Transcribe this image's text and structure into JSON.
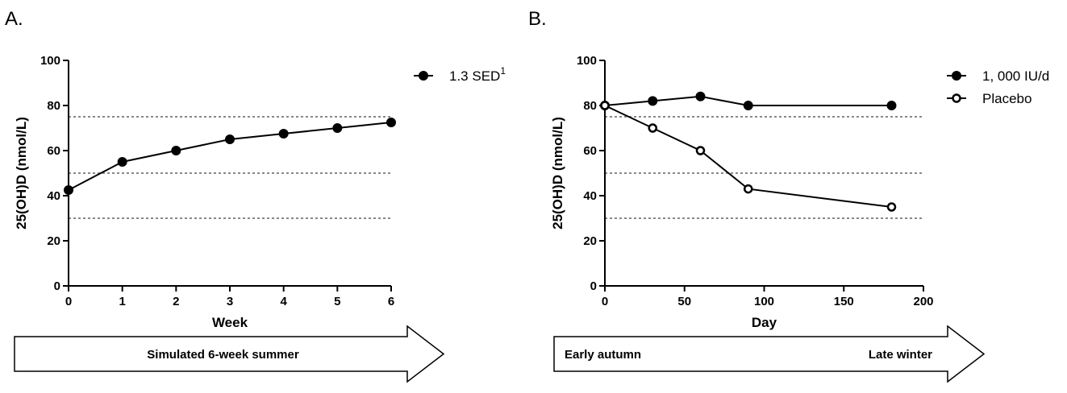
{
  "chart_data": [
    {
      "panel_label": "A.",
      "type": "line",
      "xlabel": "Week",
      "ylabel": "25(OH)D (nmol/L)",
      "xlim": [
        0,
        6
      ],
      "ylim": [
        0,
        100
      ],
      "xticks": [
        0,
        1,
        2,
        3,
        4,
        5,
        6
      ],
      "yticks": [
        0,
        20,
        40,
        60,
        80,
        100
      ],
      "reference_lines": [
        75,
        50,
        30
      ],
      "legend_position": "right",
      "series": [
        {
          "name": "1.3 SED",
          "name_superscript": "1",
          "marker": "filled-circle",
          "x": [
            0,
            1,
            2,
            3,
            4,
            5,
            6
          ],
          "y": [
            42.5,
            55,
            60,
            65,
            67.5,
            70,
            72.5
          ]
        }
      ],
      "arrow": {
        "left_text": "Simulated 6-week summer",
        "right_text": "",
        "align": "center"
      }
    },
    {
      "panel_label": "B.",
      "type": "line",
      "xlabel": "Day",
      "ylabel": "25(OH)D (nmol/L)",
      "xlim": [
        0,
        200
      ],
      "ylim": [
        0,
        100
      ],
      "xticks": [
        0,
        50,
        100,
        150,
        200
      ],
      "yticks": [
        0,
        20,
        40,
        60,
        80,
        100
      ],
      "reference_lines": [
        75,
        50,
        30
      ],
      "legend_position": "right",
      "series": [
        {
          "name": "1, 000 IU/d",
          "marker": "filled-circle",
          "x": [
            0,
            30,
            60,
            90,
            180
          ],
          "y": [
            80,
            82,
            84,
            80,
            80
          ]
        },
        {
          "name": "Placebo",
          "marker": "open-circle",
          "x": [
            0,
            30,
            60,
            90,
            180
          ],
          "y": [
            80,
            70,
            60,
            43,
            35
          ]
        }
      ],
      "arrow": {
        "left_text": "Early autumn",
        "right_text": "Late winter",
        "align": "split"
      }
    }
  ]
}
